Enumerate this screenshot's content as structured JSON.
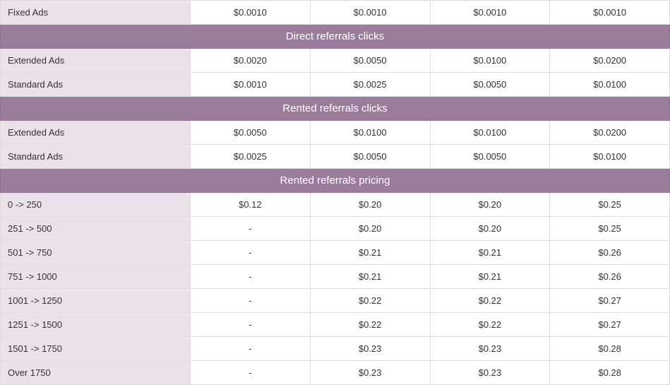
{
  "top_row": {
    "label": "Fixed Ads",
    "values": [
      "$0.0010",
      "$0.0010",
      "$0.0010",
      "$0.0010"
    ]
  },
  "sections": [
    {
      "header": "Direct referrals clicks",
      "rows": [
        {
          "label": "Extended Ads",
          "values": [
            "$0.0020",
            "$0.0050",
            "$0.0100",
            "$0.0200"
          ]
        },
        {
          "label": "Standard Ads",
          "values": [
            "$0.0010",
            "$0.0025",
            "$0.0050",
            "$0.0100"
          ]
        }
      ]
    },
    {
      "header": "Rented referrals clicks",
      "rows": [
        {
          "label": "Extended Ads",
          "values": [
            "$0.0050",
            "$0.0100",
            "$0.0100",
            "$0.0200"
          ]
        },
        {
          "label": "Standard Ads",
          "values": [
            "$0.0025",
            "$0.0050",
            "$0.0050",
            "$0.0100"
          ]
        }
      ]
    },
    {
      "header": "Rented referrals pricing",
      "rows": [
        {
          "label": "0 -> 250",
          "values": [
            "$0.12",
            "$0.20",
            "$0.20",
            "$0.25"
          ]
        },
        {
          "label": "251 -> 500",
          "values": [
            "-",
            "$0.20",
            "$0.20",
            "$0.25"
          ]
        },
        {
          "label": "501 -> 750",
          "values": [
            "-",
            "$0.21",
            "$0.21",
            "$0.26"
          ]
        },
        {
          "label": "751 -> 1000",
          "values": [
            "-",
            "$0.21",
            "$0.21",
            "$0.26"
          ]
        },
        {
          "label": "1001 -> 1250",
          "values": [
            "-",
            "$0.22",
            "$0.22",
            "$0.27"
          ]
        },
        {
          "label": "1251 -> 1500",
          "values": [
            "-",
            "$0.22",
            "$0.22",
            "$0.27"
          ]
        },
        {
          "label": "1501 -> 1750",
          "values": [
            "-",
            "$0.23",
            "$0.23",
            "$0.28"
          ]
        },
        {
          "label": "Over 1750",
          "values": [
            "-",
            "$0.23",
            "$0.23",
            "$0.28"
          ]
        }
      ]
    }
  ],
  "style": {
    "header_bg": "#9a7d9b",
    "header_fg": "#ffffff",
    "label_bg": "#ece0eb",
    "cell_border": "#dddddd",
    "text_color": "#333333",
    "label_col_width": 269,
    "value_cols": 4
  }
}
